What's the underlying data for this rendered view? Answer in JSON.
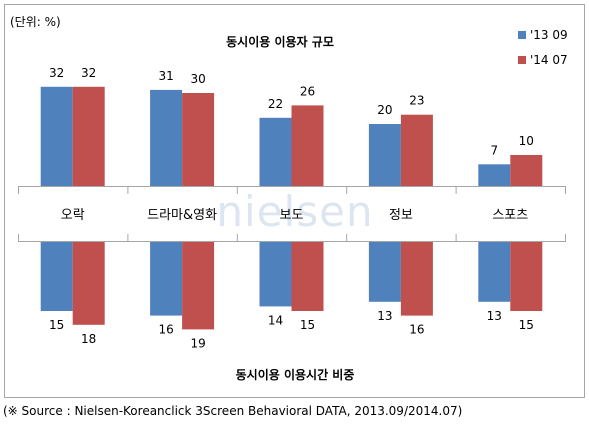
{
  "chart_data": {
    "type": "bar",
    "unit_label": "(단위: %)",
    "categories": [
      "오락",
      "드라마&영화",
      "보도",
      "정보",
      "스포츠"
    ],
    "top_panel": {
      "title": "동시이용 이용자 규모",
      "series": [
        {
          "name": "'13 09",
          "color": "#4f81bd",
          "values": [
            32,
            31,
            22,
            20,
            7
          ]
        },
        {
          "name": "'14 07",
          "color": "#c0504d",
          "values": [
            32,
            30,
            26,
            23,
            10
          ]
        }
      ]
    },
    "bottom_panel": {
      "title": "동시이용 이용시간 비중",
      "series": [
        {
          "name": "'13 09",
          "color": "#4f81bd",
          "values": [
            15,
            16,
            14,
            13,
            13
          ]
        },
        {
          "name": "'14 07",
          "color": "#c0504d",
          "values": [
            18,
            19,
            15,
            16,
            15
          ]
        }
      ]
    },
    "watermark": "nielsen",
    "legend_position": "top-right",
    "grid": false
  },
  "source_note": "(※ Source : Nielsen-Koreanclick    3Screen Behavioral DATA, 2013.09/2014.07)"
}
